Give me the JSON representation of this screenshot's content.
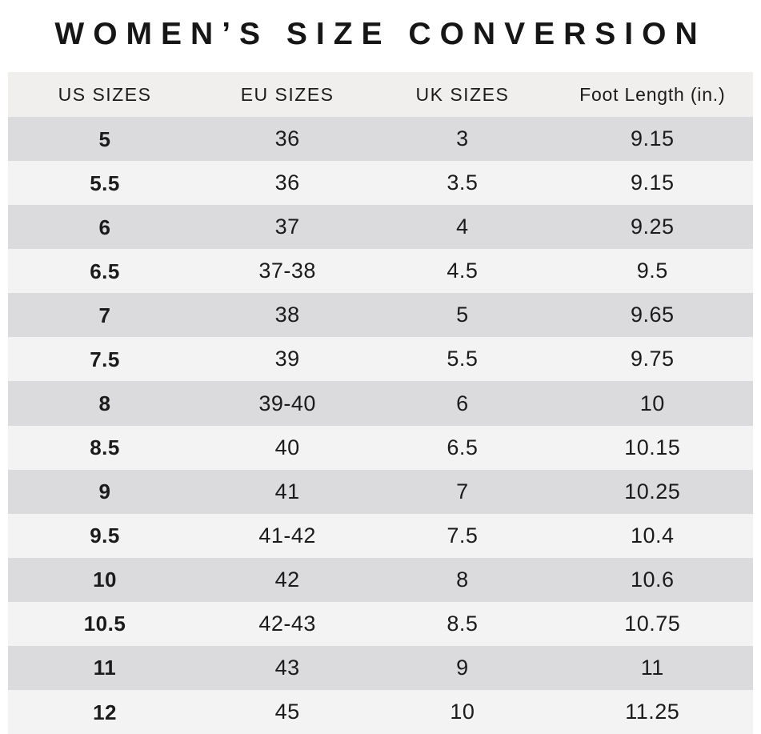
{
  "title": "WOMEN’S SIZE CONVERSION",
  "table": {
    "headers": [
      "US SIZES",
      "EU SIZES",
      "UK SIZES",
      "Foot Length (in.)"
    ],
    "rows": [
      [
        "5",
        "36",
        "3",
        "9.15"
      ],
      [
        "5.5",
        "36",
        "3.5",
        "9.15"
      ],
      [
        "6",
        "37",
        "4",
        "9.25"
      ],
      [
        "6.5",
        "37-38",
        "4.5",
        "9.5"
      ],
      [
        "7",
        "38",
        "5",
        "9.65"
      ],
      [
        "7.5",
        "39",
        "5.5",
        "9.75"
      ],
      [
        "8",
        "39-40",
        "6",
        "10"
      ],
      [
        "8.5",
        "40",
        "6.5",
        "10.15"
      ],
      [
        "9",
        "41",
        "7",
        "10.25"
      ],
      [
        "9.5",
        "41-42",
        "7.5",
        "10.4"
      ],
      [
        "10",
        "42",
        "8",
        "10.6"
      ],
      [
        "10.5",
        "42-43",
        "8.5",
        "10.75"
      ],
      [
        "11",
        "43",
        "9",
        "11"
      ],
      [
        "12",
        "45",
        "10",
        "11.25"
      ]
    ]
  },
  "colors": {
    "stripe_dark": "#dbdadd",
    "stripe_light": "#f4f3f4",
    "header_bg": "#f0efee",
    "text": "#1b1b1b",
    "page_bg": "#ffffff"
  },
  "chart_data": {
    "type": "table",
    "title": "WOMEN’S SIZE CONVERSION",
    "columns": [
      "US SIZES",
      "EU SIZES",
      "UK SIZES",
      "Foot Length (in.)"
    ],
    "rows": [
      [
        "5",
        "36",
        "3",
        "9.15"
      ],
      [
        "5.5",
        "36",
        "3.5",
        "9.15"
      ],
      [
        "6",
        "37",
        "4",
        "9.25"
      ],
      [
        "6.5",
        "37-38",
        "4.5",
        "9.5"
      ],
      [
        "7",
        "38",
        "5",
        "9.65"
      ],
      [
        "7.5",
        "39",
        "5.5",
        "9.75"
      ],
      [
        "8",
        "39-40",
        "6",
        "10"
      ],
      [
        "8.5",
        "40",
        "6.5",
        "10.15"
      ],
      [
        "9",
        "41",
        "7",
        "10.25"
      ],
      [
        "9.5",
        "41-42",
        "7.5",
        "10.4"
      ],
      [
        "10",
        "42",
        "8",
        "10.6"
      ],
      [
        "10.5",
        "42-43",
        "8.5",
        "10.75"
      ],
      [
        "11",
        "43",
        "9",
        "11"
      ],
      [
        "12",
        "45",
        "10",
        "11.25"
      ]
    ],
    "layout": {
      "striped": true,
      "first_column_bold": true,
      "grid": "off"
    }
  }
}
